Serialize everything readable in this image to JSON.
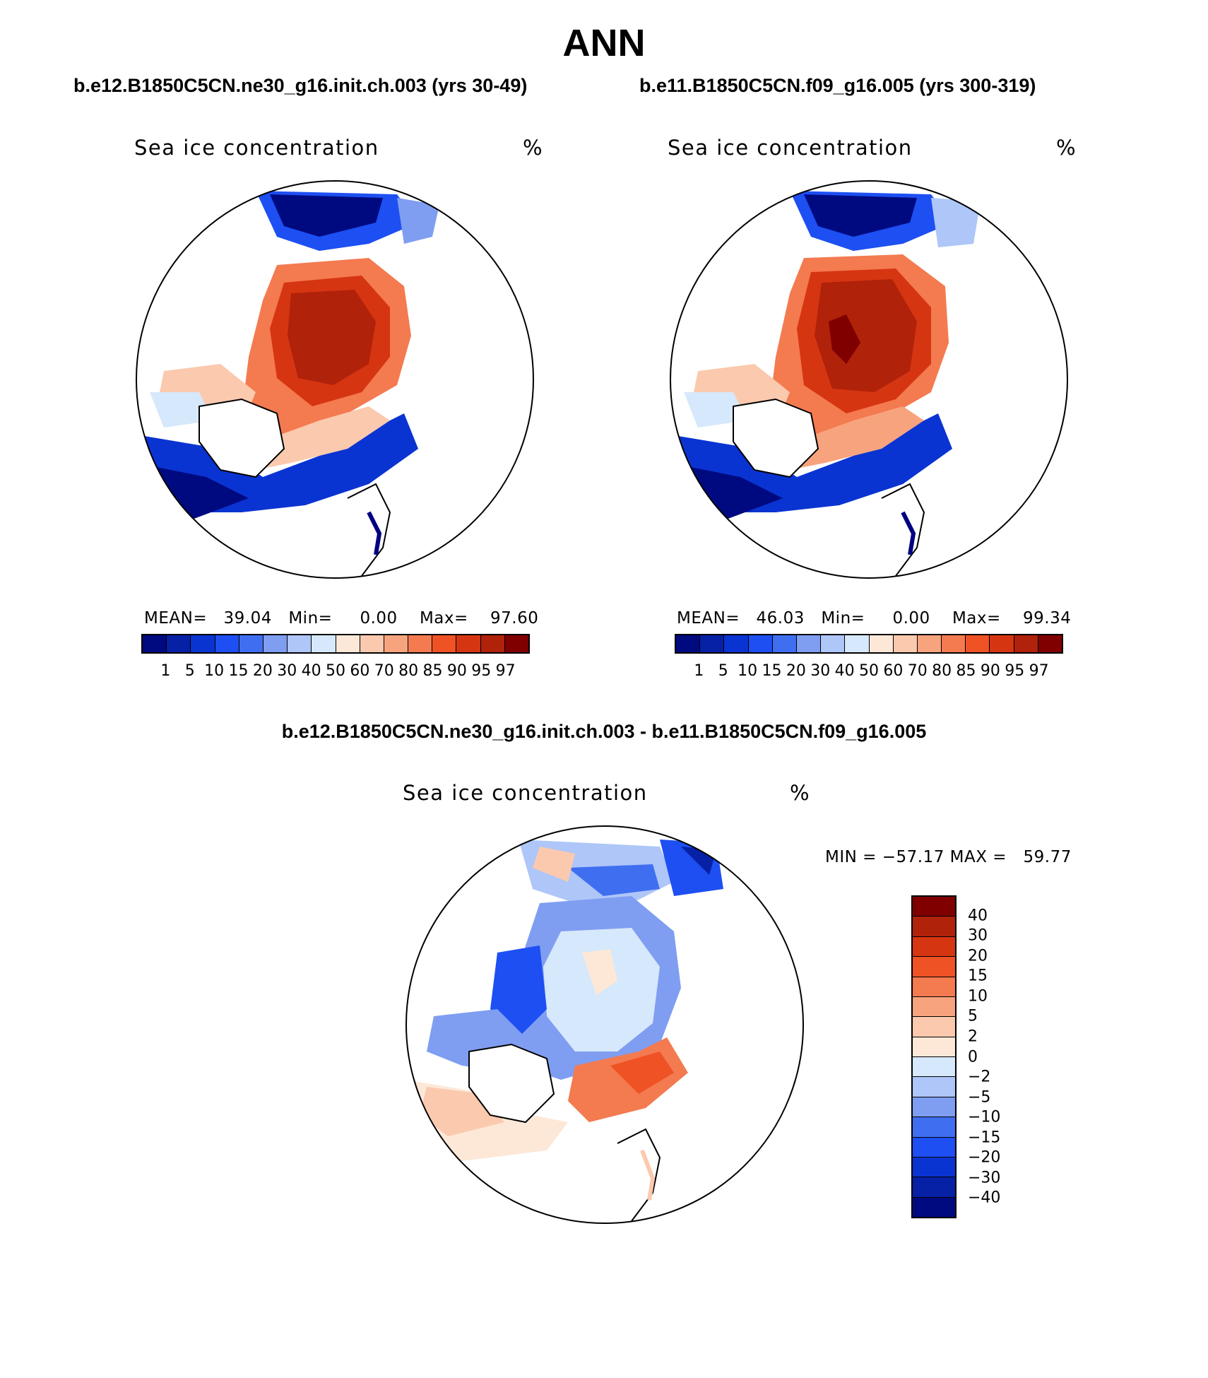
{
  "page": {
    "title": "ANN"
  },
  "panels": [
    {
      "case_title": "b.e12.B1850C5CN.ne30_g16.init.ch.003 (yrs 30-49)",
      "variable": "Sea ice concentration",
      "units": "%",
      "stats": {
        "mean_label": "MEAN=",
        "mean": "39.04",
        "min_label": "Min=",
        "min": "0.00",
        "max_label": "Max=",
        "max": "97.60"
      }
    },
    {
      "case_title": "b.e11.B1850C5CN.f09_g16.005 (yrs 300-319)",
      "variable": "Sea ice concentration",
      "units": "%",
      "stats": {
        "mean_label": "MEAN=",
        "mean": "46.03",
        "min_label": "Min=",
        "min": "0.00",
        "max_label": "Max=",
        "max": "99.34"
      }
    }
  ],
  "diff_panel": {
    "title": "b.e12.B1850C5CN.ne30_g16.init.ch.003 - b.e11.B1850C5CN.f09_g16.005",
    "variable": "Sea ice concentration",
    "units": "%",
    "minmax": "MIN = −57.17 MAX =   59.77"
  },
  "colorbar_abs": {
    "levels": [
      "1",
      "5",
      "10",
      "15",
      "20",
      "30",
      "40",
      "50",
      "60",
      "70",
      "80",
      "85",
      "90",
      "95",
      "97"
    ],
    "colors": [
      "#000a80",
      "#0621a6",
      "#0a34d2",
      "#1d4ff2",
      "#3f6ff0",
      "#7f9ef2",
      "#aec6f8",
      "#d6e8fb",
      "#fde8d8",
      "#fbc9ae",
      "#f7a47e",
      "#f47a50",
      "#ef5224",
      "#d63511",
      "#b0220a",
      "#800000"
    ]
  },
  "colorbar_diff": {
    "levels": [
      "−40",
      "−30",
      "−20",
      "−15",
      "−10",
      "−5",
      "−2",
      "0",
      "2",
      "5",
      "10",
      "15",
      "20",
      "30",
      "40"
    ],
    "colors": [
      "#000a80",
      "#0621a6",
      "#0a34d2",
      "#1d4ff2",
      "#3f6ff0",
      "#7f9ef2",
      "#aec6f8",
      "#d6e8fb",
      "#fde8d8",
      "#fbc9ae",
      "#f7a47e",
      "#f47a50",
      "#ef5224",
      "#d63511",
      "#b0220a",
      "#800000"
    ]
  }
}
